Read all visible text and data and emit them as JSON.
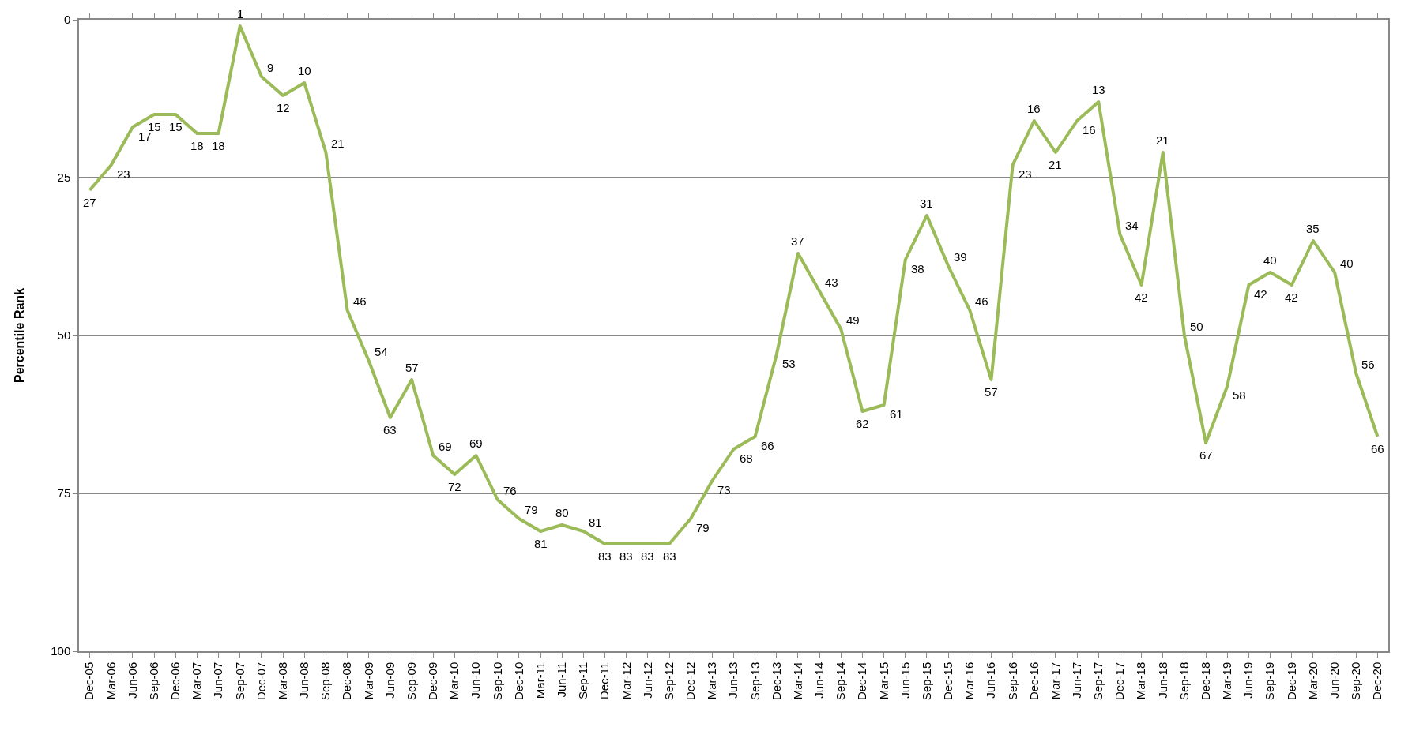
{
  "chart_data": {
    "type": "line",
    "ylabel": "Percentile Rank",
    "categories": [
      "Dec-05",
      "Mar-06",
      "Jun-06",
      "Sep-06",
      "Dec-06",
      "Mar-07",
      "Jun-07",
      "Sep-07",
      "Dec-07",
      "Mar-08",
      "Jun-08",
      "Sep-08",
      "Dec-08",
      "Mar-09",
      "Jun-09",
      "Sep-09",
      "Dec-09",
      "Mar-10",
      "Jun-10",
      "Sep-10",
      "Dec-10",
      "Mar-11",
      "Jun-11",
      "Sep-11",
      "Dec-11",
      "Mar-12",
      "Jun-12",
      "Sep-12",
      "Dec-12",
      "Mar-13",
      "Jun-13",
      "Sep-13",
      "Dec-13",
      "Mar-14",
      "Jun-14",
      "Sep-14",
      "Dec-14",
      "Mar-15",
      "Jun-15",
      "Sep-15",
      "Dec-15",
      "Mar-16",
      "Jun-16",
      "Sep-16",
      "Dec-16",
      "Mar-17",
      "Jun-17",
      "Sep-17",
      "Dec-17",
      "Mar-18",
      "Jun-18",
      "Sep-18",
      "Dec-18",
      "Mar-19",
      "Jun-19",
      "Sep-19",
      "Dec-19",
      "Mar-20",
      "Jun-20",
      "Sep-20",
      "Dec-20"
    ],
    "series": [
      {
        "color": "#9bbb59",
        "values": [
          27,
          23,
          17,
          15,
          15,
          18,
          18,
          1,
          9,
          12,
          10,
          21,
          46,
          54,
          63,
          57,
          69,
          72,
          69,
          76,
          79,
          81,
          80,
          81,
          83,
          83,
          83,
          83,
          79,
          73,
          68,
          66,
          53,
          37,
          43,
          49,
          62,
          61,
          38,
          31,
          39,
          46,
          57,
          23,
          16,
          21,
          16,
          13,
          34,
          42,
          21,
          50,
          67,
          58,
          42,
          40,
          42,
          35,
          40,
          56,
          66
        ]
      }
    ],
    "ylim": [
      100,
      0
    ],
    "yticks": [
      0,
      25,
      50,
      75,
      100
    ],
    "grid": "y",
    "legend": false,
    "data_labels": true,
    "marker": "none",
    "line_style": "solid"
  }
}
